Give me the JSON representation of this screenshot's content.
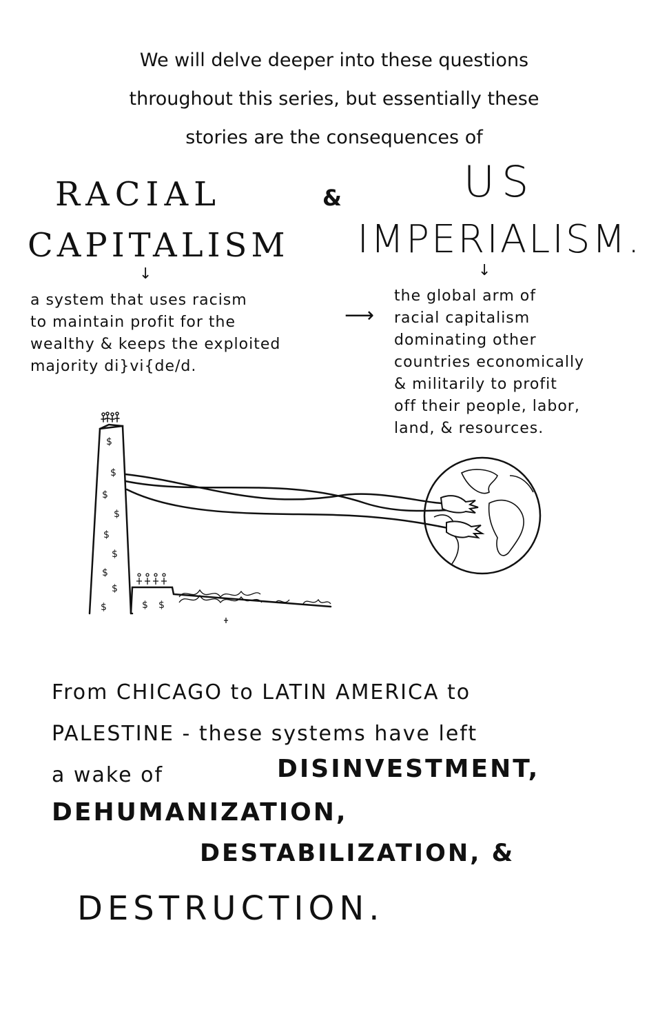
{
  "intro": {
    "line1": "We will delve deeper into these questions",
    "line2": "throughout this series, but essentially these",
    "line3": "stories are the consequences of"
  },
  "titles": {
    "racial_line1": "RACIAL",
    "racial_line2": "CAPITALISM",
    "ampersand": "&",
    "us_line1": "US",
    "us_line2": "IMPERIALISM."
  },
  "arrows": {
    "down": "↓",
    "across": "⟶"
  },
  "definitions": {
    "racial_capitalism": [
      "a system that uses racism",
      "to maintain profit for the",
      "wealthy & keeps the exploited",
      "majority di}vi{de/d."
    ],
    "us_imperialism": [
      "the global arm of",
      "racial capitalism",
      "dominating other",
      "countries economically",
      "& militarily to profit",
      "off their people, labor,",
      "land, & resources."
    ]
  },
  "illustration": {
    "tower_icon": "money-tower-icon",
    "globe_icon": "globe-icon",
    "hands_icon": "grabbing-hands-icon",
    "dollar_sign": "$"
  },
  "bottom": {
    "line1": "From CHICAGO to LATIN AMERICA to",
    "line2": "PALESTINE - these systems have left",
    "line3": "a wake of",
    "word_disinvestment": "DISINVESTMENT,",
    "word_dehumanization": "DEHUMANIZATION,",
    "word_destabilization": "DESTABILIZATION, &",
    "word_destruction": "DESTRUCTION."
  }
}
